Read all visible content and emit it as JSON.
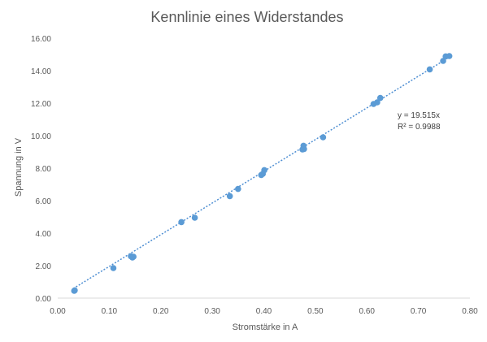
{
  "chart_data": {
    "type": "scatter",
    "title": "Kennlinie eines Widerstandes",
    "xlabel": "Stromstärke in A",
    "ylabel": "Spannung in V",
    "xlim": [
      0,
      0.8
    ],
    "ylim": [
      0,
      16
    ],
    "xticks": [
      "0.00",
      "0.10",
      "0.20",
      "0.30",
      "0.40",
      "0.50",
      "0.60",
      "0.70",
      "0.80"
    ],
    "yticks": [
      "0.00",
      "2.00",
      "4.00",
      "6.00",
      "8.00",
      "10.00",
      "12.00",
      "14.00",
      "16.00"
    ],
    "grid": false,
    "legend": "none",
    "series": [
      {
        "color": "#5b9bd5",
        "points": [
          {
            "x": 0.032,
            "y": 0.45
          },
          {
            "x": 0.033,
            "y": 0.48
          },
          {
            "x": 0.108,
            "y": 1.85
          },
          {
            "x": 0.142,
            "y": 2.58
          },
          {
            "x": 0.145,
            "y": 2.5
          },
          {
            "x": 0.147,
            "y": 2.55
          },
          {
            "x": 0.24,
            "y": 4.68
          },
          {
            "x": 0.266,
            "y": 4.95
          },
          {
            "x": 0.334,
            "y": 6.28
          },
          {
            "x": 0.35,
            "y": 6.72
          },
          {
            "x": 0.395,
            "y": 7.58
          },
          {
            "x": 0.398,
            "y": 7.65
          },
          {
            "x": 0.401,
            "y": 7.88
          },
          {
            "x": 0.475,
            "y": 9.15
          },
          {
            "x": 0.477,
            "y": 9.38
          },
          {
            "x": 0.478,
            "y": 9.18
          },
          {
            "x": 0.515,
            "y": 9.9
          },
          {
            "x": 0.613,
            "y": 11.95
          },
          {
            "x": 0.62,
            "y": 12.05
          },
          {
            "x": 0.626,
            "y": 12.32
          },
          {
            "x": 0.722,
            "y": 14.08
          },
          {
            "x": 0.748,
            "y": 14.6
          },
          {
            "x": 0.753,
            "y": 14.88
          },
          {
            "x": 0.76,
            "y": 14.9
          }
        ]
      }
    ],
    "trendline": {
      "slope": 19.515,
      "color": "#4f8fd3",
      "style": "dotted",
      "x_range": [
        0.03,
        0.76
      ],
      "equation": "y = 19.515x",
      "r_squared": "R² = 0.9988"
    }
  }
}
